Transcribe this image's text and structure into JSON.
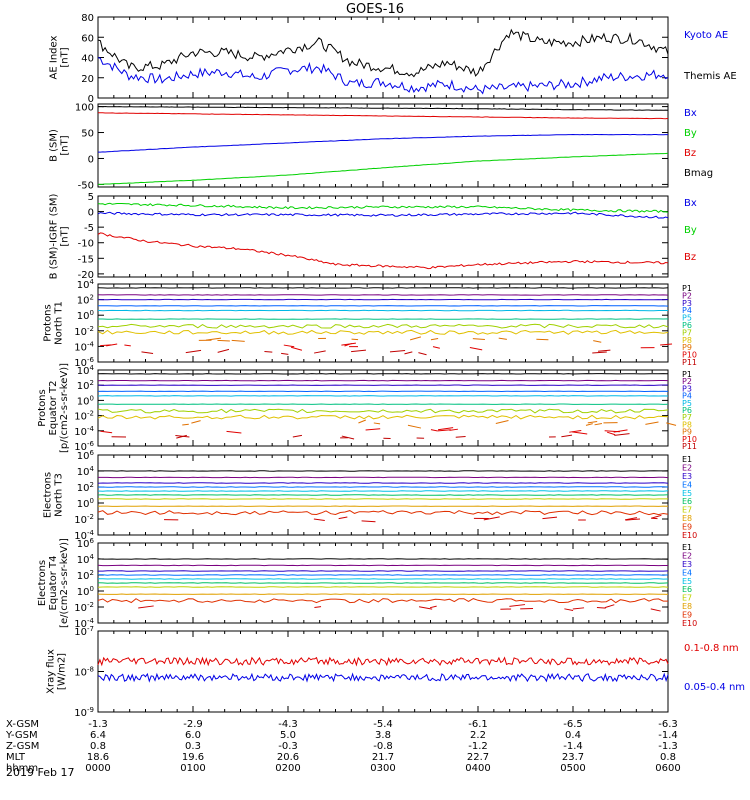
{
  "title": "GOES-16",
  "date": "2019 Feb 17",
  "colors": {
    "black": "#000000",
    "blue": "#0000e6",
    "green": "#00d000",
    "red": "#e00000"
  },
  "chart_data": [
    {
      "type": "line",
      "ylabel": [
        "AE Index",
        "[nT]"
      ],
      "ylim": [
        0,
        80
      ],
      "yticks": [
        "0",
        "20",
        "40",
        "60",
        "80"
      ],
      "series": [
        {
          "name": "Kyoto AE",
          "color": "#0000e6",
          "x": [
            0,
            0.33,
            0.67,
            1.0,
            1.33,
            1.67,
            2.0,
            2.33,
            2.67,
            3.0,
            3.33,
            3.67,
            4.0,
            4.33,
            4.67,
            5.0,
            5.33,
            5.67,
            6.0
          ],
          "values": [
            40,
            22,
            18,
            24,
            26,
            20,
            28,
            30,
            14,
            16,
            10,
            14,
            8,
            10,
            12,
            14,
            20,
            22,
            24
          ]
        },
        {
          "name": "Themis AE",
          "color": "#000000",
          "x": [
            0,
            0.33,
            0.67,
            1.0,
            1.33,
            1.67,
            2.0,
            2.33,
            2.67,
            3.0,
            3.33,
            3.67,
            4.0,
            4.33,
            4.67,
            5.0,
            5.33,
            5.67,
            6.0
          ],
          "values": [
            55,
            30,
            32,
            45,
            45,
            40,
            48,
            55,
            35,
            30,
            25,
            35,
            25,
            65,
            55,
            55,
            60,
            58,
            45
          ]
        }
      ]
    },
    {
      "type": "line",
      "ylabel": [
        "B (SM)",
        "[nT]"
      ],
      "ylim": [
        -55,
        105
      ],
      "yticks": [
        "-50",
        "0",
        "50",
        "100"
      ],
      "series": [
        {
          "name": "Bx",
          "color": "#0000e6",
          "x": [
            0,
            1,
            2,
            3,
            4,
            5,
            6
          ],
          "values": [
            12,
            22,
            30,
            38,
            43,
            46,
            46
          ]
        },
        {
          "name": "By",
          "color": "#00d000",
          "x": [
            0,
            1,
            2,
            3,
            4,
            5,
            6
          ],
          "values": [
            -50,
            -42,
            -32,
            -18,
            -5,
            3,
            10
          ]
        },
        {
          "name": "Bz",
          "color": "#e00000",
          "x": [
            0,
            1,
            2,
            3,
            4,
            5,
            6
          ],
          "values": [
            88,
            86,
            84,
            82,
            80,
            78,
            77
          ]
        },
        {
          "name": "Bmag",
          "color": "#000000",
          "x": [
            0,
            1,
            2,
            3,
            4,
            5,
            6
          ],
          "values": [
            100,
            99,
            98,
            97,
            96,
            94,
            93
          ]
        }
      ]
    },
    {
      "type": "line",
      "ylabel": [
        "B (SM)-IGRF (SM)",
        "[nT]"
      ],
      "ylim": [
        -21,
        5
      ],
      "yticks": [
        "-20",
        "-15",
        "-10",
        "-5",
        "0",
        "5"
      ],
      "series": [
        {
          "name": "Bx",
          "color": "#0000e6",
          "x": [
            0,
            1,
            2,
            3,
            4,
            5,
            6
          ],
          "values": [
            -0.5,
            -1,
            -1,
            -1.2,
            -0.8,
            -0.5,
            -2
          ]
        },
        {
          "name": "By",
          "color": "#00d000",
          "x": [
            0,
            1,
            2,
            3,
            4,
            5,
            6
          ],
          "values": [
            2.5,
            2,
            1.2,
            1.5,
            1.5,
            0.5,
            0
          ]
        },
        {
          "name": "Bz",
          "color": "#e00000",
          "x": [
            0,
            0.5,
            1,
            1.5,
            2,
            2.5,
            3,
            3.5,
            4,
            5,
            6
          ],
          "values": [
            -7,
            -9.5,
            -11,
            -12,
            -14,
            -17,
            -17.5,
            -18,
            -17,
            -16,
            -16.5
          ]
        }
      ]
    }
  ],
  "log_panels": [
    {
      "ylabel": [
        "Protons",
        "North T1"
      ],
      "ylim": [
        -6,
        4
      ],
      "yticks": [
        "10-6",
        "10-4",
        "10-2",
        "100",
        "102",
        "104"
      ],
      "channels": [
        "P1",
        "P2",
        "P3",
        "P4",
        "P5",
        "P6",
        "P7",
        "P8",
        "P9",
        "P10",
        "P11"
      ]
    },
    {
      "ylabel": [
        "Protons",
        "Equator T2",
        "[p/(cm2-s-sr-keV)]"
      ],
      "ylim": [
        -6,
        4
      ],
      "yticks": [
        "10-6",
        "10-4",
        "10-2",
        "100",
        "102",
        "104"
      ],
      "channels": [
        "P1",
        "P2",
        "P3",
        "P4",
        "P5",
        "P6",
        "P7",
        "P8",
        "P9",
        "P10",
        "P11"
      ]
    },
    {
      "ylabel": [
        "Electrons",
        "North T3"
      ],
      "ylim": [
        -4,
        6
      ],
      "yticks": [
        "10-4",
        "10-2",
        "100",
        "102",
        "104",
        "106"
      ],
      "channels": [
        "E1",
        "E2",
        "E3",
        "E4",
        "E5",
        "E6",
        "E7",
        "E8",
        "E9",
        "E10"
      ]
    },
    {
      "ylabel": [
        "Electrons",
        "Equator T4",
        "[e/(cm2-s-sr-keV)]"
      ],
      "ylim": [
        -4,
        6
      ],
      "yticks": [
        "10-4",
        "10-2",
        "100",
        "102",
        "104",
        "106"
      ],
      "channels": [
        "E1",
        "E2",
        "E3",
        "E4",
        "E5",
        "E6",
        "E7",
        "E8",
        "E9",
        "E10"
      ]
    }
  ],
  "xray": {
    "ylabel": [
      "Xray flux",
      "[W/m2]"
    ],
    "yticks": [
      "10-9",
      "10-8",
      "10-7"
    ],
    "series": [
      {
        "name": "0.1-0.8 nm",
        "color": "#e00000",
        "value_exp": -7.75
      },
      {
        "name": "0.05-0.4 nm",
        "color": "#0000e6",
        "value_exp": -8.15
      }
    ]
  },
  "orbit_table": {
    "row_labels": [
      "X-GSM",
      "Y-GSM",
      "Z-GSM",
      "MLT",
      "hhmm"
    ],
    "columns": [
      [
        "-1.3",
        "6.4",
        "0.8",
        "18.6",
        "0000"
      ],
      [
        "-2.9",
        "6.0",
        "0.3",
        "19.6",
        "0100"
      ],
      [
        "-4.3",
        "5.0",
        "-0.3",
        "20.6",
        "0200"
      ],
      [
        "-5.4",
        "3.8",
        "-0.8",
        "21.7",
        "0300"
      ],
      [
        "-6.1",
        "2.2",
        "-1.2",
        "22.7",
        "0400"
      ],
      [
        "-6.5",
        "0.4",
        "-1.4",
        "23.7",
        "0500"
      ],
      [
        "-6.3",
        "-1.4",
        "-1.3",
        "0.8",
        "0600"
      ]
    ]
  }
}
